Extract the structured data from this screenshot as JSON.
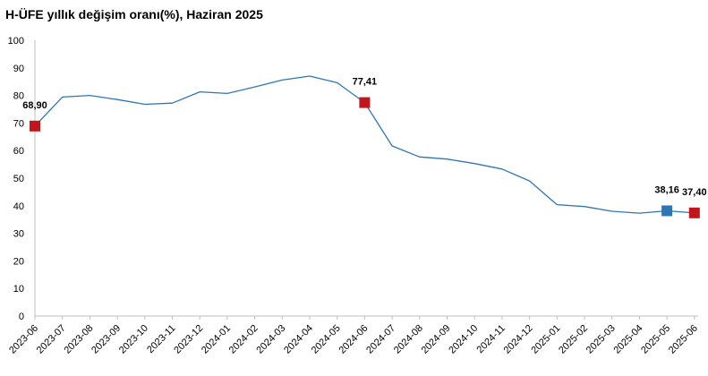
{
  "chart_data": {
    "type": "line",
    "title": "H-ÜFE yıllık değişim oranı(%), Haziran 2025",
    "xlabel": "",
    "ylabel": "",
    "ylim": [
      0,
      100
    ],
    "yticks": [
      0,
      10,
      20,
      30,
      40,
      50,
      60,
      70,
      80,
      90,
      100
    ],
    "grid": false,
    "categories": [
      "2023-06",
      "2023-07",
      "2023-08",
      "2023-09",
      "2023-10",
      "2023-11",
      "2023-12",
      "2024-01",
      "2024-02",
      "2024-03",
      "2024-04",
      "2024-05",
      "2024-06",
      "2024-07",
      "2024-08",
      "2024-09",
      "2024-10",
      "2024-11",
      "2024-12",
      "2025-01",
      "2025-02",
      "2025-03",
      "2025-04",
      "2025-05",
      "2025-06"
    ],
    "series": [
      {
        "values": [
          68.9,
          79.4,
          80.0,
          78.5,
          76.8,
          77.2,
          81.3,
          80.7,
          83.1,
          85.6,
          87.0,
          84.6,
          77.41,
          61.7,
          57.7,
          56.9,
          55.3,
          53.3,
          49.0,
          40.4,
          39.7,
          38.0,
          37.3,
          38.16,
          37.4
        ],
        "color": "#2e75b6"
      }
    ],
    "highlights": [
      {
        "index": 0,
        "label": "68,90",
        "color": "#c0161c"
      },
      {
        "index": 12,
        "label": "77,41",
        "color": "#c0161c"
      },
      {
        "index": 23,
        "label": "38,16",
        "color": "#2e75b6"
      },
      {
        "index": 24,
        "label": "37,40",
        "color": "#c0161c"
      }
    ]
  }
}
